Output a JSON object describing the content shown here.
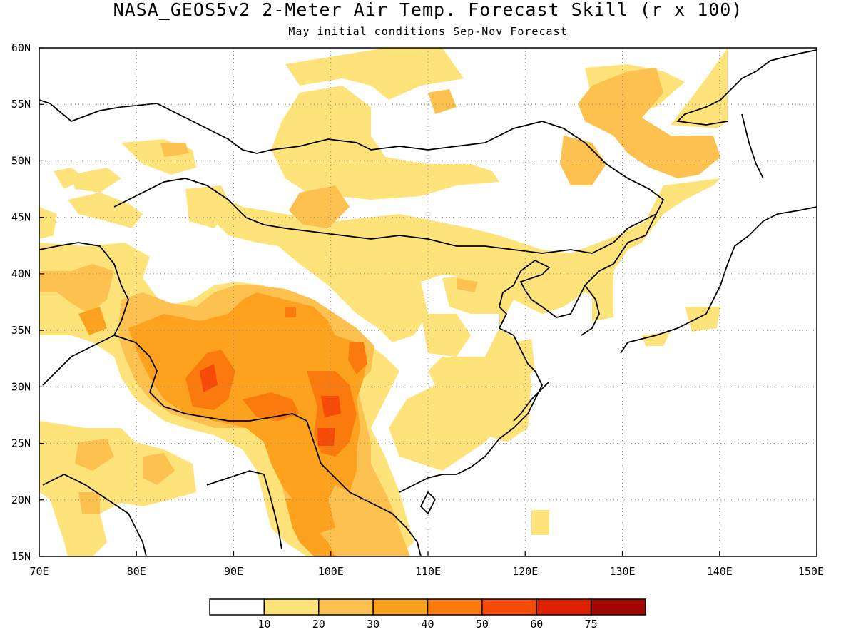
{
  "title": "NASA_GEOS5v2 2-Meter Air Temp. Forecast Skill (r x 100)",
  "subtitle": "May initial conditions   Sep-Nov Forecast",
  "map": {
    "lon_range": [
      70,
      150
    ],
    "lat_range": [
      15,
      60
    ],
    "x_tick_labels": [
      "70E",
      "80E",
      "90E",
      "100E",
      "110E",
      "120E",
      "130E",
      "140E",
      "150E"
    ],
    "y_tick_labels": [
      "15N",
      "20N",
      "25N",
      "30N",
      "35N",
      "40N",
      "45N",
      "50N",
      "55N",
      "60N"
    ],
    "grid": "dotted"
  },
  "colorbar": {
    "labels": [
      "10",
      "20",
      "30",
      "40",
      "50",
      "60",
      "75"
    ],
    "colors": [
      "#ffffff",
      "#fee37a",
      "#fdc150",
      "#fca21e",
      "#fb7a0e",
      "#f64a08",
      "#dd1f02",
      "#a10600"
    ]
  }
}
